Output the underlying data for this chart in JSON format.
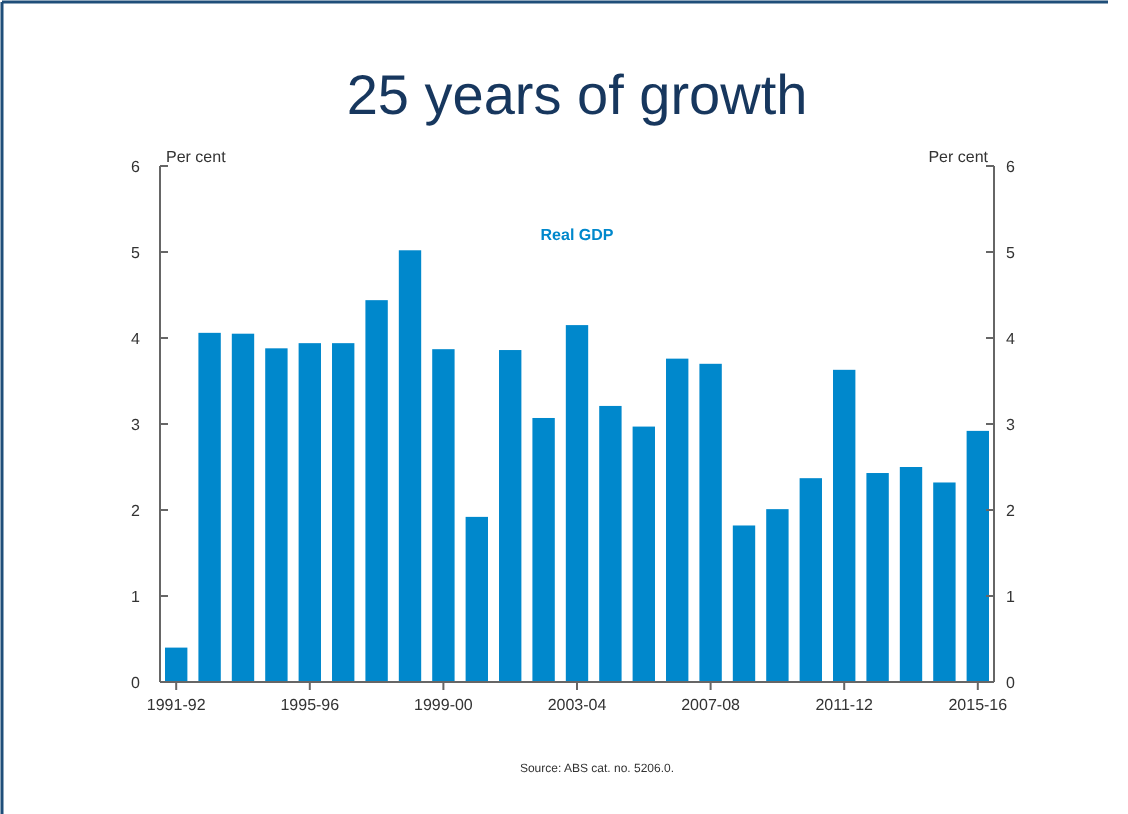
{
  "chart_data": {
    "type": "bar",
    "title": "25 years of growth",
    "ylabel": "Per cent",
    "y2label": "Per cent",
    "categories": [
      "1991-92",
      null,
      null,
      null,
      "1995-96",
      null,
      null,
      null,
      "1999-00",
      null,
      null,
      null,
      "2003-04",
      null,
      null,
      null,
      "2007-08",
      null,
      null,
      null,
      "2011-12",
      null,
      null,
      null,
      "2015-16"
    ],
    "series": [
      {
        "name": "Real GDP",
        "color": "#0088cc",
        "values": [
          0.4,
          4.06,
          4.05,
          3.88,
          3.94,
          3.94,
          4.44,
          5.02,
          3.87,
          1.92,
          3.86,
          3.07,
          4.15,
          3.21,
          2.97,
          3.76,
          3.7,
          1.82,
          2.01,
          2.37,
          3.63,
          2.43,
          2.5,
          2.32,
          2.92
        ]
      }
    ],
    "ylim": [
      0,
      6
    ],
    "yticks": [
      0,
      1,
      2,
      3,
      4,
      5,
      6
    ],
    "y2lim": [
      0,
      6
    ],
    "y2ticks": [
      0,
      1,
      2,
      3,
      4,
      5,
      6
    ],
    "grid": false,
    "annotations": [
      "Source: ABS cat. no. 5206.0."
    ]
  }
}
